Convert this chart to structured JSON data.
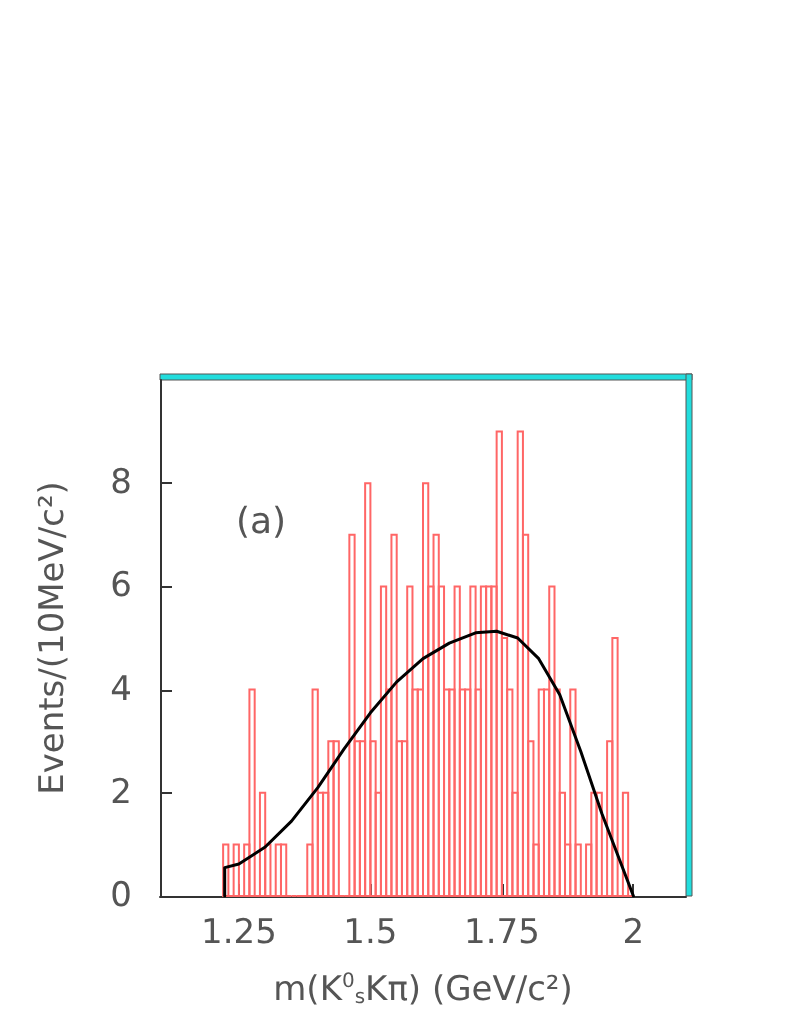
{
  "chart_data": {
    "type": "histogram",
    "xlabel": "m(K$^{0}$$_{s}$Kπ) (GeV/c²)",
    "ylabel": "Events/(10MeV/c²)",
    "annotations": [
      "(a)"
    ],
    "bins": [
      1.22,
      1.23,
      1.24,
      1.25,
      1.26,
      1.27,
      1.28,
      1.29,
      1.3,
      1.31,
      1.32,
      1.33,
      1.34,
      1.35,
      1.36,
      1.37,
      1.38,
      1.39,
      1.4,
      1.41,
      1.42,
      1.43,
      1.44,
      1.45,
      1.46,
      1.47,
      1.48,
      1.49,
      1.5,
      1.51,
      1.52,
      1.53,
      1.54,
      1.55,
      1.56,
      1.57,
      1.58,
      1.59,
      1.6,
      1.61,
      1.62,
      1.63,
      1.64,
      1.65,
      1.66,
      1.67,
      1.68,
      1.69,
      1.7,
      1.71,
      1.72,
      1.73,
      1.74,
      1.75,
      1.76,
      1.77,
      1.78,
      1.79,
      1.8,
      1.81,
      1.82,
      1.83,
      1.84,
      1.85,
      1.86,
      1.87,
      1.88,
      1.89,
      1.9,
      1.91,
      1.92,
      1.93,
      1.94,
      1.95,
      1.96,
      1.97,
      1.98,
      1.99,
      2.0
    ],
    "values": [
      1,
      0,
      1,
      0,
      1,
      4,
      0,
      2,
      1,
      0,
      1,
      1,
      0,
      0,
      0,
      0,
      1,
      4,
      2,
      2,
      3,
      3,
      0,
      0,
      7,
      3,
      3,
      8,
      3,
      2,
      6,
      4,
      7,
      3,
      3,
      6,
      4,
      4,
      8,
      6,
      7,
      6,
      4,
      4,
      6,
      4,
      4,
      6,
      4,
      6,
      6,
      6,
      9,
      5,
      4,
      2,
      9,
      7,
      3,
      1,
      4,
      4,
      6,
      4,
      2,
      1,
      4,
      1,
      0,
      1,
      2,
      2,
      0,
      3,
      5,
      0,
      2,
      0
    ],
    "color": "#ff6666",
    "series": [
      {
        "type": "line",
        "color": "#000000",
        "x": [
          1.223,
          1.223,
          1.25,
          1.3,
          1.35,
          1.4,
          1.45,
          1.5,
          1.55,
          1.6,
          1.65,
          1.7,
          1.74,
          1.78,
          1.82,
          1.86,
          1.9,
          1.94,
          1.97,
          2.0
        ],
        "values": [
          0,
          0.55,
          0.62,
          0.95,
          1.45,
          2.1,
          2.85,
          3.55,
          4.15,
          4.6,
          4.9,
          5.1,
          5.13,
          5.0,
          4.6,
          3.9,
          2.8,
          1.6,
          0.8,
          0
        ]
      }
    ],
    "xlim": [
      1.1,
      2.1
    ],
    "xticks": [
      1.25,
      1.5,
      1.75,
      2
    ],
    "ylim": [
      0,
      10
    ],
    "yticks": [
      0,
      2,
      4,
      6,
      8
    ],
    "marker": "none",
    "line_style": "solid"
  }
}
